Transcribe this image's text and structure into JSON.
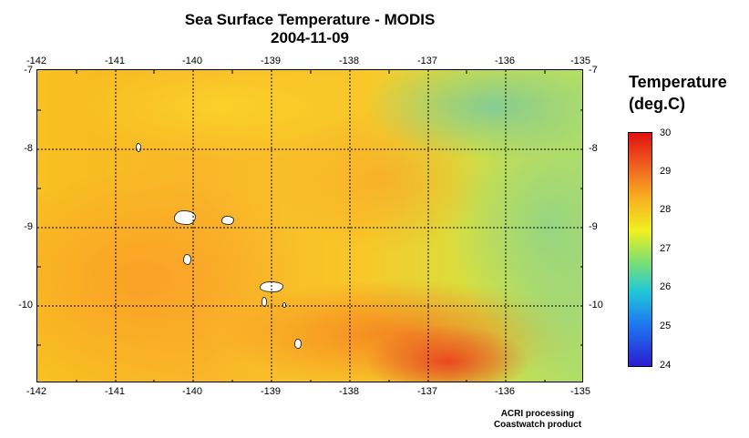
{
  "title": "Sea Surface Temperature - MODIS",
  "date": "2004-11-09",
  "map": {
    "lon_ticks": [
      "-142",
      "-141",
      "-140",
      "-139",
      "-138",
      "-137",
      "-136",
      "-135"
    ],
    "lat_ticks_left": [
      "-7",
      "-8",
      "-9",
      "-10"
    ],
    "lat_ticks_right": [
      "-7",
      "-8",
      "-9",
      "-10"
    ],
    "lon_range": [
      -142,
      -135
    ],
    "lat_range": [
      -11,
      -7
    ],
    "grid": true
  },
  "legend": {
    "title_line1": "Temperature",
    "title_line2": "(deg.C)",
    "min": 24,
    "max": 30,
    "labels": [
      "30",
      "29",
      "28",
      "27",
      "26",
      "25",
      "24"
    ],
    "colors": [
      "#2a1ed0",
      "#1e78f0",
      "#20c8d8",
      "#80e070",
      "#f0f020",
      "#f8b020",
      "#f06020",
      "#e01010"
    ]
  },
  "credits": {
    "line1": "ACRI processing",
    "line2": "Coastwatch product"
  }
}
